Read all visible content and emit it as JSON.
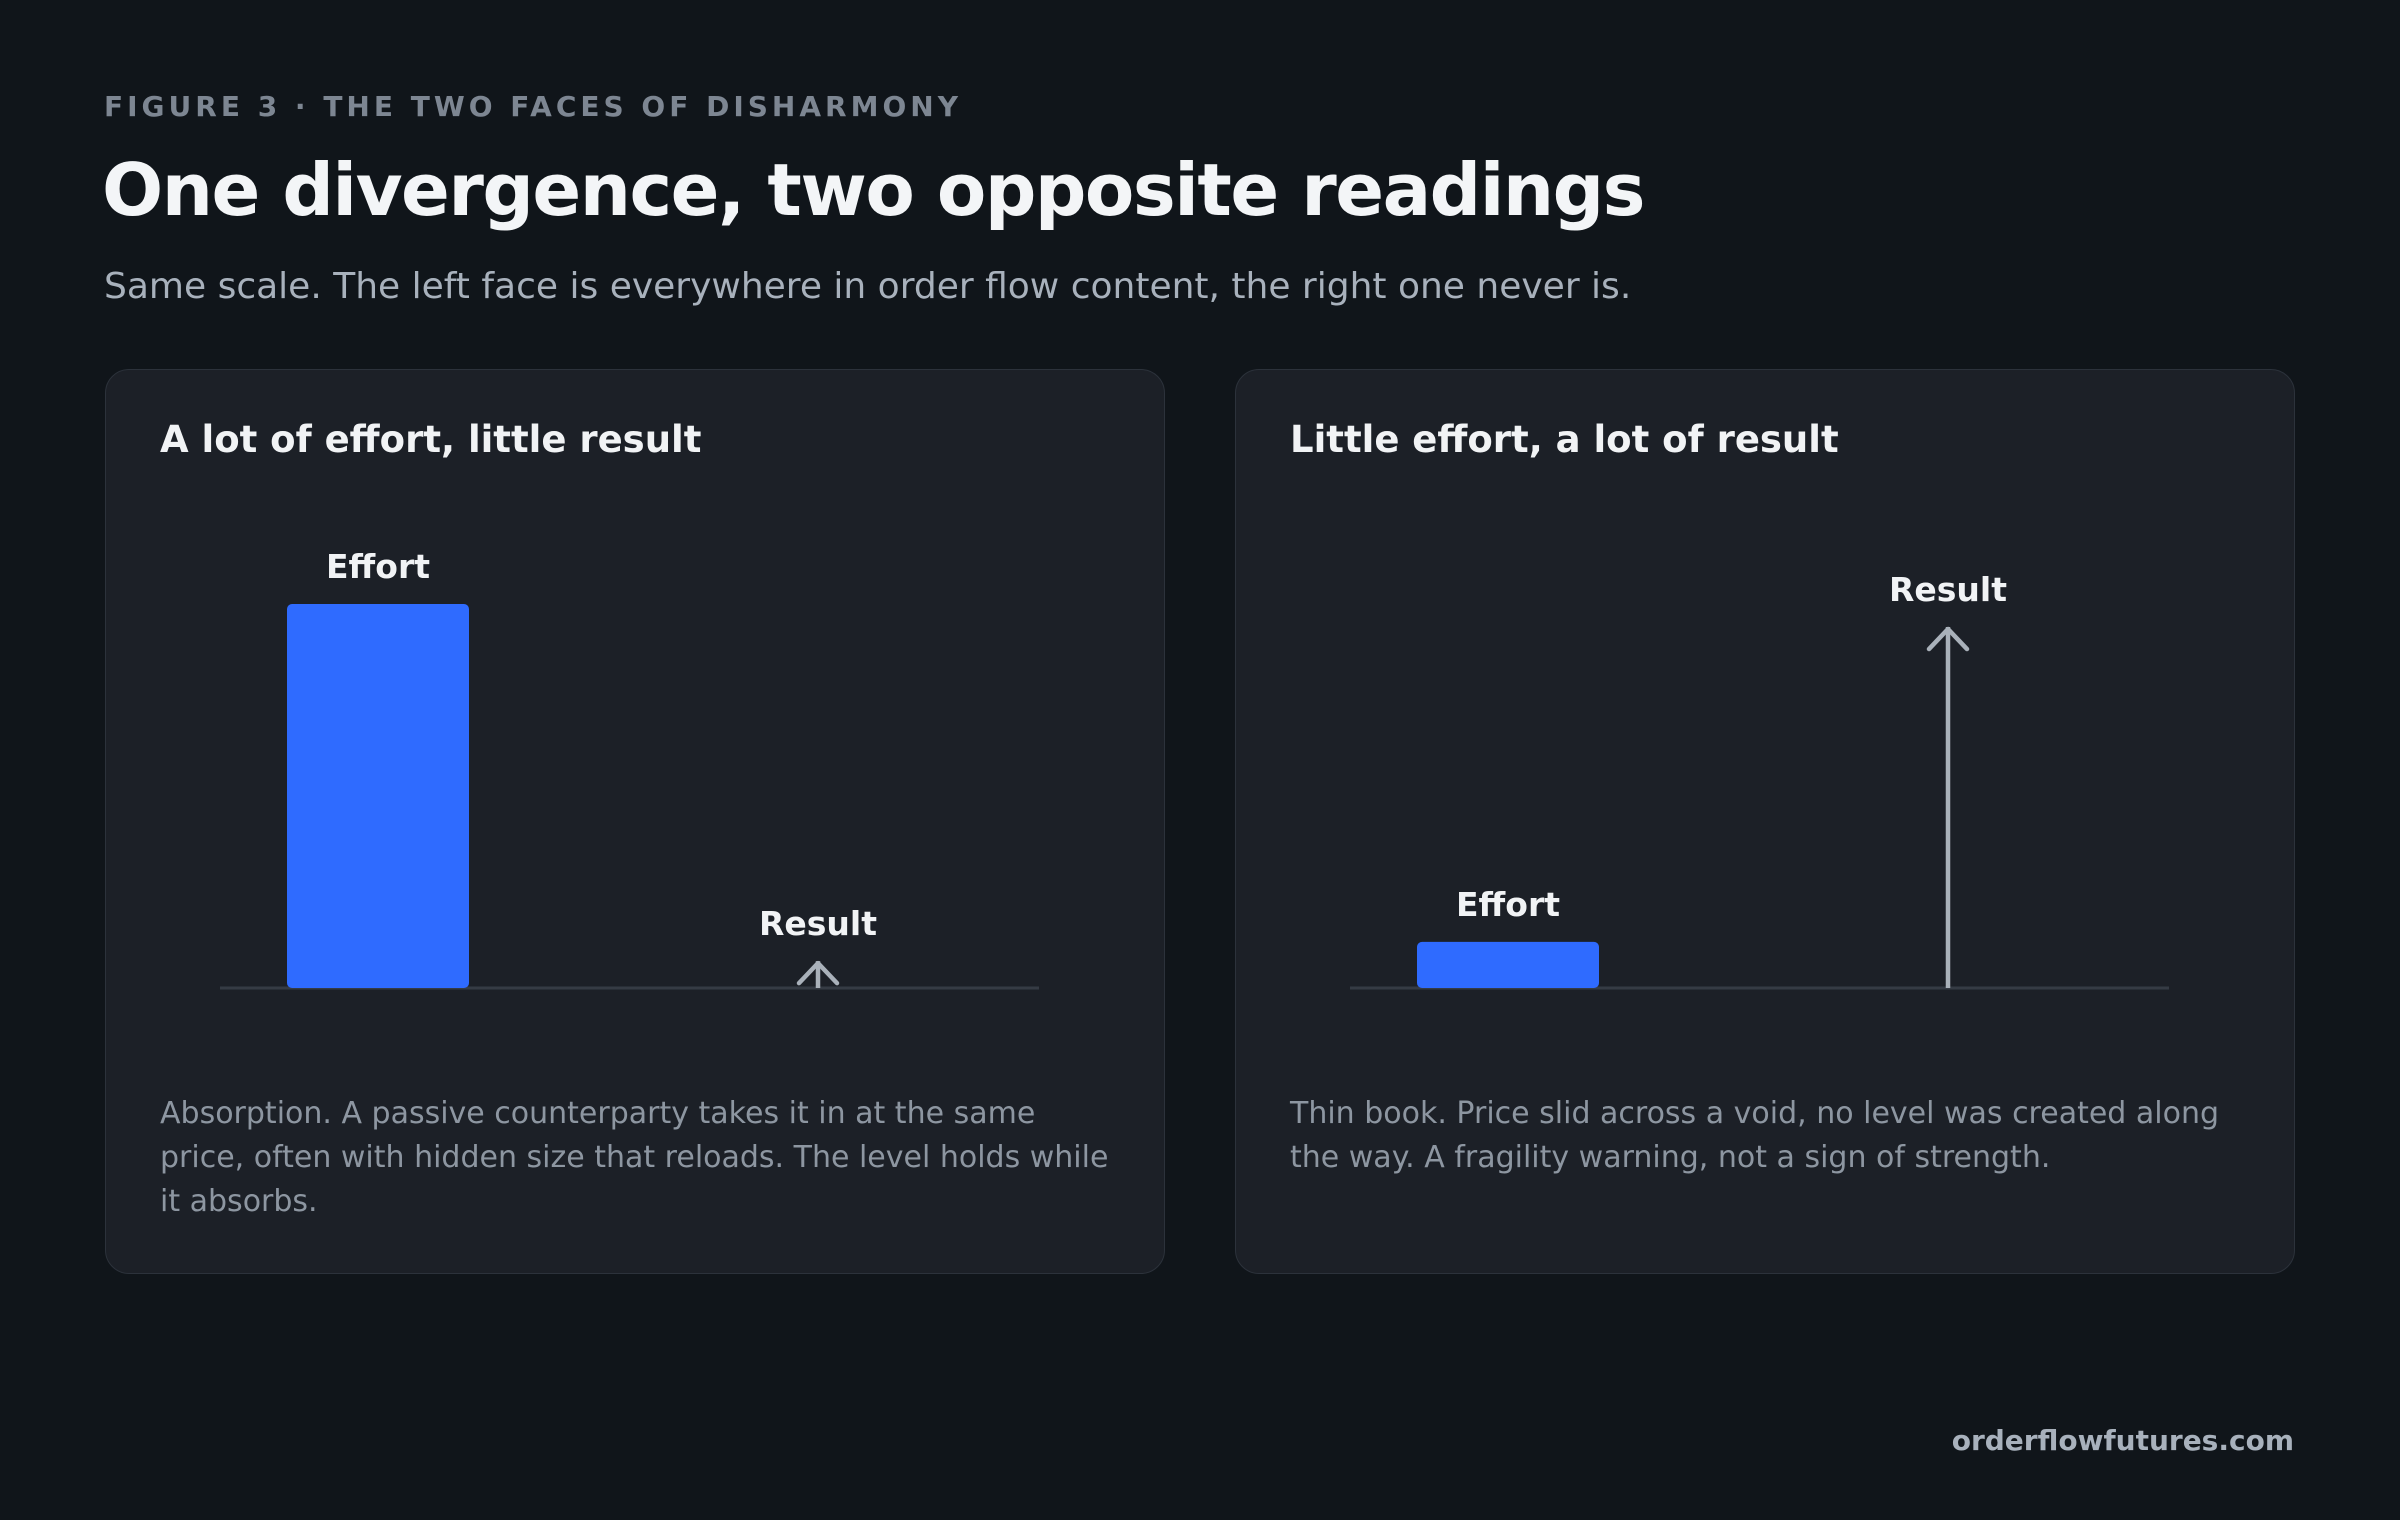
{
  "header": {
    "eyebrow": "FIGURE 3 · THE TWO FACES OF DISHARMONY",
    "title": "One divergence, two opposite readings",
    "subtitle": "Same scale. The left face is everywhere in order flow content, the right one never is."
  },
  "chart_data": [
    {
      "type": "bar",
      "title": "A lot of effort, little result",
      "categories": [
        "Effort",
        "Result"
      ],
      "values": [
        100,
        7
      ],
      "marks": [
        "bar",
        "arrow"
      ],
      "colors": [
        "#2f6bff",
        "#a9b1ba"
      ],
      "ylim": [
        0,
        100
      ],
      "caption": "Absorption. A passive counterparty takes it in at the same price, often with hidden size that reloads. The level holds while it absorbs."
    },
    {
      "type": "bar",
      "title": "Little effort, a lot of result",
      "categories": [
        "Effort",
        "Result"
      ],
      "values": [
        12,
        94
      ],
      "marks": [
        "bar",
        "arrow"
      ],
      "colors": [
        "#2f6bff",
        "#a9b1ba"
      ],
      "ylim": [
        0,
        100
      ],
      "caption": "Thin book. Price slid across a void, no level was created along the way. A fragility warning, not a sign of strength."
    }
  ],
  "footer": "orderflowfutures.com"
}
